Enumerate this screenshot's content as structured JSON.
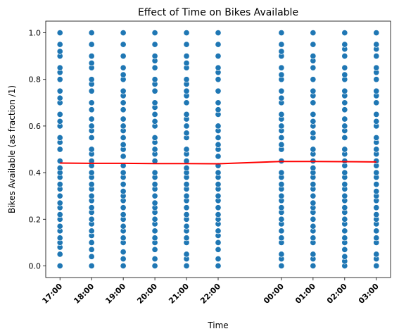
{
  "chart_data": {
    "type": "scatter",
    "title": "Effect of Time on Bikes Available",
    "xlabel": "Time",
    "ylabel": "Bikes Available (as fraction /1)",
    "x_ticks": [
      {
        "label": "17:00",
        "hours": 17
      },
      {
        "label": "18:00",
        "hours": 18
      },
      {
        "label": "19:00",
        "hours": 19
      },
      {
        "label": "20:00",
        "hours": 20
      },
      {
        "label": "21:00",
        "hours": 21
      },
      {
        "label": "22:00",
        "hours": 22
      },
      {
        "label": "00:00",
        "hours": 24
      },
      {
        "label": "01:00",
        "hours": 25
      },
      {
        "label": "02:00",
        "hours": 26
      },
      {
        "label": "03:00",
        "hours": 27
      }
    ],
    "y_ticks": [
      "0.0",
      "0.2",
      "0.4",
      "0.6",
      "0.8",
      "1.0"
    ],
    "xlim": [
      16.55,
      27.45
    ],
    "ylim": [
      -0.05,
      1.05
    ],
    "grid": false,
    "series": [
      {
        "kind": "scatter",
        "color": "#1f77b4",
        "groups": [
          {
            "time": "17:00",
            "values": [
              0.0,
              0.05,
              0.08,
              0.1,
              0.12,
              0.15,
              0.17,
              0.2,
              0.22,
              0.25,
              0.27,
              0.3,
              0.33,
              0.35,
              0.38,
              0.4,
              0.42,
              0.45,
              0.5,
              0.53,
              0.55,
              0.6,
              0.62,
              0.65,
              0.7,
              0.72,
              0.75,
              0.8,
              0.83,
              0.85,
              0.9,
              0.92,
              0.95,
              1.0
            ]
          },
          {
            "time": "18:00",
            "values": [
              0.0,
              0.04,
              0.07,
              0.1,
              0.13,
              0.15,
              0.18,
              0.2,
              0.23,
              0.25,
              0.28,
              0.3,
              0.33,
              0.35,
              0.38,
              0.4,
              0.43,
              0.45,
              0.48,
              0.5,
              0.55,
              0.58,
              0.6,
              0.63,
              0.67,
              0.7,
              0.75,
              0.78,
              0.8,
              0.85,
              0.87,
              0.9,
              0.95,
              1.0
            ]
          },
          {
            "time": "19:00",
            "values": [
              0.0,
              0.03,
              0.06,
              0.1,
              0.12,
              0.15,
              0.17,
              0.2,
              0.22,
              0.25,
              0.28,
              0.3,
              0.32,
              0.35,
              0.38,
              0.4,
              0.43,
              0.47,
              0.5,
              0.52,
              0.55,
              0.58,
              0.6,
              0.63,
              0.67,
              0.7,
              0.73,
              0.75,
              0.8,
              0.82,
              0.85,
              0.9,
              0.95,
              1.0
            ]
          },
          {
            "time": "20:00",
            "values": [
              0.0,
              0.03,
              0.07,
              0.1,
              0.12,
              0.15,
              0.18,
              0.2,
              0.23,
              0.25,
              0.27,
              0.3,
              0.33,
              0.35,
              0.38,
              0.4,
              0.45,
              0.48,
              0.5,
              0.53,
              0.55,
              0.6,
              0.62,
              0.65,
              0.68,
              0.7,
              0.75,
              0.78,
              0.8,
              0.85,
              0.88,
              0.9,
              0.95,
              1.0
            ]
          },
          {
            "time": "21:00",
            "values": [
              0.0,
              0.03,
              0.05,
              0.1,
              0.12,
              0.15,
              0.17,
              0.2,
              0.22,
              0.25,
              0.28,
              0.3,
              0.33,
              0.35,
              0.38,
              0.4,
              0.42,
              0.45,
              0.48,
              0.5,
              0.55,
              0.57,
              0.6,
              0.63,
              0.65,
              0.7,
              0.73,
              0.75,
              0.78,
              0.8,
              0.85,
              0.87,
              0.9,
              0.95,
              1.0
            ]
          },
          {
            "time": "22:00",
            "values": [
              0.0,
              0.03,
              0.07,
              0.1,
              0.13,
              0.15,
              0.18,
              0.2,
              0.22,
              0.25,
              0.28,
              0.3,
              0.33,
              0.35,
              0.38,
              0.4,
              0.43,
              0.47,
              0.5,
              0.52,
              0.55,
              0.58,
              0.6,
              0.65,
              0.67,
              0.7,
              0.75,
              0.8,
              0.83,
              0.85,
              0.9,
              0.95,
              1.0
            ]
          },
          {
            "time": "00:00",
            "values": [
              0.0,
              0.03,
              0.05,
              0.1,
              0.12,
              0.15,
              0.18,
              0.2,
              0.23,
              0.25,
              0.28,
              0.3,
              0.33,
              0.35,
              0.38,
              0.4,
              0.45,
              0.5,
              0.52,
              0.55,
              0.58,
              0.6,
              0.63,
              0.65,
              0.7,
              0.72,
              0.75,
              0.8,
              0.82,
              0.85,
              0.9,
              0.92,
              0.95,
              1.0
            ]
          },
          {
            "time": "01:00",
            "values": [
              0.0,
              0.03,
              0.05,
              0.1,
              0.12,
              0.15,
              0.17,
              0.2,
              0.23,
              0.25,
              0.27,
              0.3,
              0.33,
              0.35,
              0.38,
              0.4,
              0.42,
              0.45,
              0.48,
              0.5,
              0.55,
              0.57,
              0.6,
              0.62,
              0.65,
              0.7,
              0.73,
              0.75,
              0.8,
              0.85,
              0.88,
              0.9,
              0.95,
              1.0
            ]
          },
          {
            "time": "02:00",
            "values": [
              0.0,
              0.02,
              0.04,
              0.07,
              0.1,
              0.12,
              0.15,
              0.18,
              0.2,
              0.23,
              0.25,
              0.28,
              0.3,
              0.33,
              0.35,
              0.38,
              0.4,
              0.43,
              0.45,
              0.48,
              0.5,
              0.55,
              0.58,
              0.6,
              0.63,
              0.67,
              0.7,
              0.73,
              0.75,
              0.8,
              0.82,
              0.85,
              0.9,
              0.93,
              0.95,
              1.0
            ]
          },
          {
            "time": "03:00",
            "values": [
              0.0,
              0.03,
              0.05,
              0.1,
              0.12,
              0.15,
              0.18,
              0.2,
              0.22,
              0.25,
              0.28,
              0.3,
              0.32,
              0.35,
              0.38,
              0.4,
              0.43,
              0.45,
              0.48,
              0.5,
              0.53,
              0.55,
              0.6,
              0.62,
              0.65,
              0.7,
              0.73,
              0.75,
              0.8,
              0.83,
              0.85,
              0.9,
              0.93,
              0.95,
              1.0
            ]
          }
        ]
      },
      {
        "kind": "line",
        "color": "#ff0000",
        "x": [
          "17:00",
          "18:00",
          "19:00",
          "20:00",
          "21:00",
          "22:00",
          "00:00",
          "01:00",
          "02:00",
          "03:00"
        ],
        "y": [
          0.441,
          0.44,
          0.44,
          0.439,
          0.439,
          0.438,
          0.448,
          0.448,
          0.447,
          0.446
        ]
      }
    ]
  }
}
